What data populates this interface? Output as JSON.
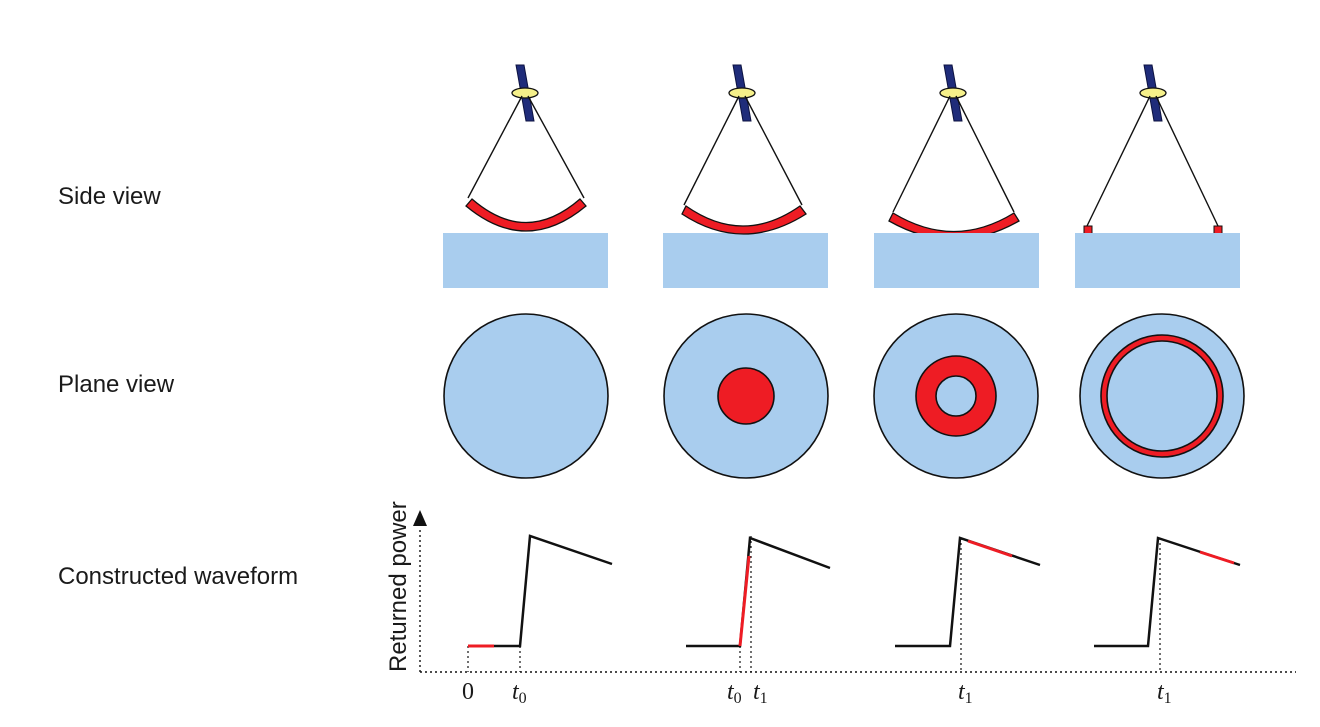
{
  "rows": {
    "side_view": "Side view",
    "plane_view": "Plane view",
    "waveform": "Constructed waveform"
  },
  "waveform_axis": {
    "ylabel": "Returned power"
  },
  "ticks": [
    {
      "text": "0",
      "sub": ""
    },
    {
      "text": "t",
      "sub": "0"
    },
    {
      "text": "t",
      "sub": "0"
    },
    {
      "text": "t",
      "sub": "1"
    },
    {
      "text": "t",
      "sub": "1"
    },
    {
      "text": "t",
      "sub": "1"
    }
  ],
  "colors": {
    "water": "#a9cdee",
    "highlight": "#ee1c24",
    "satellite_panel": "#1f2c7a",
    "satellite_body": "#f5f08a",
    "ink": "#111111"
  },
  "icons": {
    "satellite": "satellite-icon"
  }
}
